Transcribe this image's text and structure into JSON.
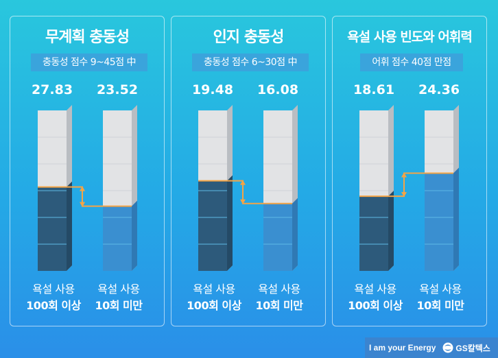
{
  "chart_data": [
    {
      "type": "bar",
      "title": "무계획 충동성",
      "subtitle": "충동성 점수 9~45점 中",
      "categories": [
        [
          "욕설 사용",
          "100회 이상"
        ],
        [
          "욕설 사용",
          "10회 미만"
        ]
      ],
      "values": [
        27.83,
        23.52
      ],
      "ylim": [
        9,
        45
      ]
    },
    {
      "type": "bar",
      "title": "인지 충동성",
      "subtitle": "충동성 점수 6~30점 中",
      "categories": [
        [
          "욕설 사용",
          "100회 이상"
        ],
        [
          "욕설 사용",
          "10회 미만"
        ]
      ],
      "values": [
        19.48,
        16.08
      ],
      "ylim": [
        6,
        30
      ]
    },
    {
      "type": "bar",
      "title": "욕설 사용 빈도와 어휘력",
      "subtitle": "어휘 점수 40점 만점",
      "categories": [
        [
          "욕설 사용",
          "100회 이상"
        ],
        [
          "욕설 사용",
          "10회 미만"
        ]
      ],
      "values": [
        18.61,
        24.36
      ],
      "ylim": [
        0,
        40
      ]
    }
  ],
  "footer": {
    "slogan": "I am your Energy",
    "brand": "GS칼텍스"
  },
  "colors": {
    "dark_fill": "#2d5a7b",
    "light_fill": "#3a8fd0",
    "empty_fill": "#e2e3e5",
    "marker": "#f5a445",
    "bg": "#25b6e2"
  }
}
